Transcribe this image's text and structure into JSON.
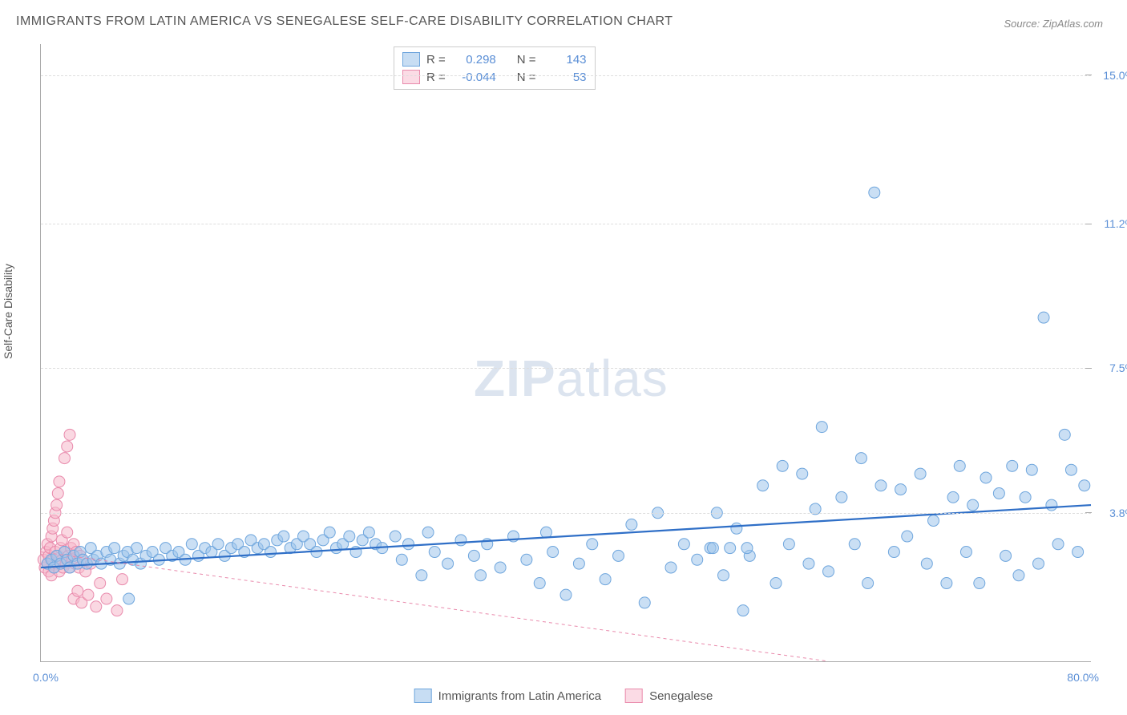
{
  "title": "IMMIGRANTS FROM LATIN AMERICA VS SENEGALESE SELF-CARE DISABILITY CORRELATION CHART",
  "source": "Source: ZipAtlas.com",
  "y_axis_label": "Self-Care Disability",
  "watermark_bold": "ZIP",
  "watermark_light": "atlas",
  "chart": {
    "type": "scatter",
    "x_min": 0.0,
    "x_max": 80.0,
    "y_min": 0.0,
    "y_max": 15.8,
    "y_ticks": [
      {
        "value": 3.8,
        "label": "3.8%"
      },
      {
        "value": 7.5,
        "label": "7.5%"
      },
      {
        "value": 11.2,
        "label": "11.2%"
      },
      {
        "value": 15.0,
        "label": "15.0%"
      }
    ],
    "x_tick_left": "0.0%",
    "x_tick_right": "80.0%",
    "background_color": "#ffffff",
    "grid_color": "#dddddd",
    "series": [
      {
        "name": "Immigrants from Latin America",
        "color_fill": "#9fc5eb",
        "color_stroke": "#6fa6dd",
        "fill_opacity": 0.55,
        "marker_radius": 7,
        "trend": {
          "x1": 0,
          "y1": 2.4,
          "x2": 80,
          "y2": 4.0,
          "color": "#2f6fc7",
          "width": 2.2,
          "dash": "none"
        },
        "R": "0.298",
        "N": "143",
        "points": [
          [
            0.5,
            2.5
          ],
          [
            0.8,
            2.6
          ],
          [
            1.0,
            2.4
          ],
          [
            1.2,
            2.7
          ],
          [
            1.5,
            2.5
          ],
          [
            1.8,
            2.8
          ],
          [
            2.0,
            2.6
          ],
          [
            2.2,
            2.4
          ],
          [
            2.5,
            2.7
          ],
          [
            2.8,
            2.5
          ],
          [
            3.0,
            2.8
          ],
          [
            3.2,
            2.6
          ],
          [
            3.5,
            2.5
          ],
          [
            3.8,
            2.9
          ],
          [
            4.0,
            2.6
          ],
          [
            4.3,
            2.7
          ],
          [
            4.6,
            2.5
          ],
          [
            5.0,
            2.8
          ],
          [
            5.3,
            2.6
          ],
          [
            5.6,
            2.9
          ],
          [
            6.0,
            2.5
          ],
          [
            6.3,
            2.7
          ],
          [
            6.6,
            2.8
          ],
          [
            7.0,
            2.6
          ],
          [
            7.3,
            2.9
          ],
          [
            7.6,
            2.5
          ],
          [
            8.0,
            2.7
          ],
          [
            8.5,
            2.8
          ],
          [
            9.0,
            2.6
          ],
          [
            9.5,
            2.9
          ],
          [
            10.0,
            2.7
          ],
          [
            10.5,
            2.8
          ],
          [
            11.0,
            2.6
          ],
          [
            11.5,
            3.0
          ],
          [
            12.0,
            2.7
          ],
          [
            12.5,
            2.9
          ],
          [
            13.0,
            2.8
          ],
          [
            13.5,
            3.0
          ],
          [
            14.0,
            2.7
          ],
          [
            14.5,
            2.9
          ],
          [
            15.0,
            3.0
          ],
          [
            15.5,
            2.8
          ],
          [
            16.0,
            3.1
          ],
          [
            16.5,
            2.9
          ],
          [
            17.0,
            3.0
          ],
          [
            17.5,
            2.8
          ],
          [
            18.0,
            3.1
          ],
          [
            18.5,
            3.2
          ],
          [
            19.0,
            2.9
          ],
          [
            19.5,
            3.0
          ],
          [
            20.0,
            3.2
          ],
          [
            20.5,
            3.0
          ],
          [
            21.0,
            2.8
          ],
          [
            21.5,
            3.1
          ],
          [
            22.0,
            3.3
          ],
          [
            22.5,
            2.9
          ],
          [
            23.0,
            3.0
          ],
          [
            23.5,
            3.2
          ],
          [
            24.0,
            2.8
          ],
          [
            24.5,
            3.1
          ],
          [
            25.0,
            3.3
          ],
          [
            25.5,
            3.0
          ],
          [
            26.0,
            2.9
          ],
          [
            27.0,
            3.2
          ],
          [
            27.5,
            2.6
          ],
          [
            28.0,
            3.0
          ],
          [
            29.0,
            2.2
          ],
          [
            29.5,
            3.3
          ],
          [
            30.0,
            2.8
          ],
          [
            31.0,
            2.5
          ],
          [
            32.0,
            3.1
          ],
          [
            33.0,
            2.7
          ],
          [
            33.5,
            2.2
          ],
          [
            34.0,
            3.0
          ],
          [
            35.0,
            2.4
          ],
          [
            36.0,
            3.2
          ],
          [
            37.0,
            2.6
          ],
          [
            38.0,
            2.0
          ],
          [
            38.5,
            3.3
          ],
          [
            39.0,
            2.8
          ],
          [
            40.0,
            1.7
          ],
          [
            41.0,
            2.5
          ],
          [
            42.0,
            3.0
          ],
          [
            43.0,
            2.1
          ],
          [
            44.0,
            2.7
          ],
          [
            45.0,
            3.5
          ],
          [
            46.0,
            1.5
          ],
          [
            47.0,
            3.8
          ],
          [
            48.0,
            2.4
          ],
          [
            49.0,
            3.0
          ],
          [
            50.0,
            2.6
          ],
          [
            51.0,
            2.9
          ],
          [
            51.5,
            3.8
          ],
          [
            52.0,
            2.2
          ],
          [
            53.0,
            3.4
          ],
          [
            53.5,
            1.3
          ],
          [
            54.0,
            2.7
          ],
          [
            55.0,
            4.5
          ],
          [
            56.0,
            2.0
          ],
          [
            56.5,
            5.0
          ],
          [
            57.0,
            3.0
          ],
          [
            58.0,
            4.8
          ],
          [
            58.5,
            2.5
          ],
          [
            59.0,
            3.9
          ],
          [
            59.5,
            6.0
          ],
          [
            60.0,
            2.3
          ],
          [
            61.0,
            4.2
          ],
          [
            62.0,
            3.0
          ],
          [
            62.5,
            5.2
          ],
          [
            63.0,
            2.0
          ],
          [
            63.5,
            12.0
          ],
          [
            64.0,
            4.5
          ],
          [
            65.0,
            2.8
          ],
          [
            65.5,
            4.4
          ],
          [
            66.0,
            3.2
          ],
          [
            67.0,
            4.8
          ],
          [
            67.5,
            2.5
          ],
          [
            68.0,
            3.6
          ],
          [
            69.0,
            2.0
          ],
          [
            69.5,
            4.2
          ],
          [
            70.0,
            5.0
          ],
          [
            70.5,
            2.8
          ],
          [
            71.0,
            4.0
          ],
          [
            71.5,
            2.0
          ],
          [
            72.0,
            4.7
          ],
          [
            73.0,
            4.3
          ],
          [
            73.5,
            2.7
          ],
          [
            74.0,
            5.0
          ],
          [
            74.5,
            2.2
          ],
          [
            75.0,
            4.2
          ],
          [
            75.5,
            4.9
          ],
          [
            76.0,
            2.5
          ],
          [
            76.4,
            8.8
          ],
          [
            77.0,
            4.0
          ],
          [
            77.5,
            3.0
          ],
          [
            78.0,
            5.8
          ],
          [
            78.5,
            4.9
          ],
          [
            79.0,
            2.8
          ],
          [
            79.5,
            4.5
          ],
          [
            6.7,
            1.6
          ],
          [
            53.8,
            2.9
          ],
          [
            51.2,
            2.9
          ],
          [
            52.5,
            2.9
          ]
        ]
      },
      {
        "name": "Senegalese",
        "color_fill": "#f5b8cb",
        "color_stroke": "#e98aac",
        "fill_opacity": 0.55,
        "marker_radius": 7,
        "trend": {
          "x1": 0,
          "y1": 2.8,
          "x2": 60,
          "y2": 0.0,
          "color": "#e98aac",
          "width": 1,
          "dash": "4,4"
        },
        "R": "-0.044",
        "N": "53",
        "points": [
          [
            0.2,
            2.6
          ],
          [
            0.3,
            2.4
          ],
          [
            0.4,
            2.8
          ],
          [
            0.5,
            2.5
          ],
          [
            0.5,
            3.0
          ],
          [
            0.6,
            2.3
          ],
          [
            0.6,
            2.7
          ],
          [
            0.7,
            2.9
          ],
          [
            0.8,
            2.2
          ],
          [
            0.8,
            3.2
          ],
          [
            0.9,
            2.6
          ],
          [
            0.9,
            3.4
          ],
          [
            1.0,
            2.4
          ],
          [
            1.0,
            3.6
          ],
          [
            1.1,
            2.8
          ],
          [
            1.1,
            3.8
          ],
          [
            1.2,
            2.5
          ],
          [
            1.2,
            4.0
          ],
          [
            1.3,
            2.7
          ],
          [
            1.3,
            4.3
          ],
          [
            1.4,
            2.3
          ],
          [
            1.4,
            4.6
          ],
          [
            1.5,
            2.9
          ],
          [
            1.6,
            2.6
          ],
          [
            1.6,
            3.1
          ],
          [
            1.7,
            2.4
          ],
          [
            1.8,
            2.8
          ],
          [
            1.8,
            5.2
          ],
          [
            1.9,
            2.5
          ],
          [
            2.0,
            3.3
          ],
          [
            2.0,
            5.5
          ],
          [
            2.1,
            2.7
          ],
          [
            2.2,
            2.4
          ],
          [
            2.2,
            5.8
          ],
          [
            2.3,
            2.9
          ],
          [
            2.4,
            2.6
          ],
          [
            2.5,
            3.0
          ],
          [
            2.5,
            1.6
          ],
          [
            2.6,
            2.5
          ],
          [
            2.7,
            2.8
          ],
          [
            2.8,
            1.8
          ],
          [
            2.9,
            2.4
          ],
          [
            3.0,
            2.7
          ],
          [
            3.1,
            1.5
          ],
          [
            3.2,
            2.6
          ],
          [
            3.4,
            2.3
          ],
          [
            3.6,
            1.7
          ],
          [
            3.8,
            2.5
          ],
          [
            4.2,
            1.4
          ],
          [
            4.5,
            2.0
          ],
          [
            5.0,
            1.6
          ],
          [
            5.8,
            1.3
          ],
          [
            6.2,
            2.1
          ]
        ]
      }
    ]
  },
  "stats_legend": {
    "swatch_blue_fill": "#c7ddf3",
    "swatch_blue_border": "#6fa6dd",
    "swatch_pink_fill": "#fbdbe5",
    "swatch_pink_border": "#e98aac",
    "r_label": "R =",
    "n_label": "N ="
  },
  "bottom_legend": {
    "item1_label": "Immigrants from Latin America",
    "item2_label": "Senegalese"
  }
}
